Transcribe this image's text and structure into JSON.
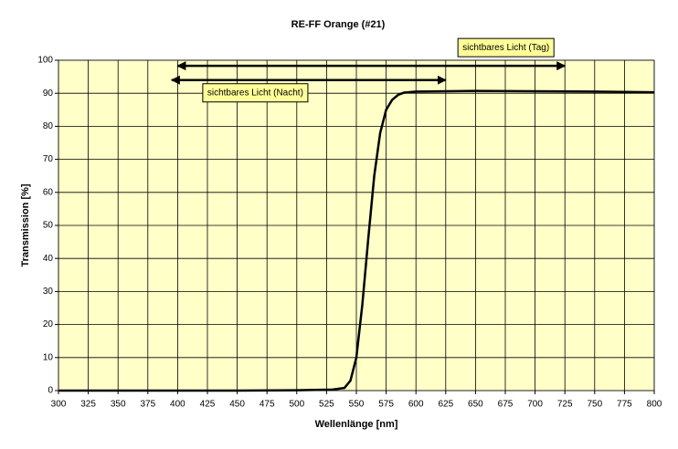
{
  "chart_data": {
    "type": "line",
    "title": "RE-FF Orange (#21)",
    "x_label": "Wellenlänge [nm]",
    "y_label": "Transmission [%]",
    "x": [
      300,
      350,
      400,
      450,
      500,
      530,
      540,
      545,
      550,
      555,
      560,
      565,
      570,
      575,
      580,
      585,
      590,
      600,
      650,
      700,
      750,
      800
    ],
    "series": [
      {
        "name": "RE-FF Orange (#21)",
        "color": "#000000",
        "values": [
          0,
          0,
          0,
          0,
          0.1,
          0.3,
          0.8,
          3,
          10,
          26,
          46,
          65,
          78,
          85,
          88,
          89.5,
          90.2,
          90.5,
          90.7,
          90.6,
          90.5,
          90.3
        ]
      }
    ],
    "xlim": [
      300,
      800
    ],
    "ylim": [
      0,
      100
    ],
    "xticks": [
      300,
      325,
      350,
      375,
      400,
      425,
      450,
      475,
      500,
      525,
      550,
      575,
      600,
      625,
      650,
      675,
      700,
      725,
      750,
      775,
      800
    ],
    "yticks": [
      0,
      10,
      20,
      30,
      40,
      50,
      60,
      70,
      80,
      90,
      100
    ],
    "grid": true,
    "plot_background": "#ffffc8",
    "annotations": [
      {
        "text": "sichtbares Licht (Tag)",
        "x": [
          400,
          725
        ],
        "y": 98.3
      },
      {
        "text": "sichtbares Licht (Nacht)",
        "x": [
          395,
          625
        ],
        "y": 94
      }
    ]
  }
}
